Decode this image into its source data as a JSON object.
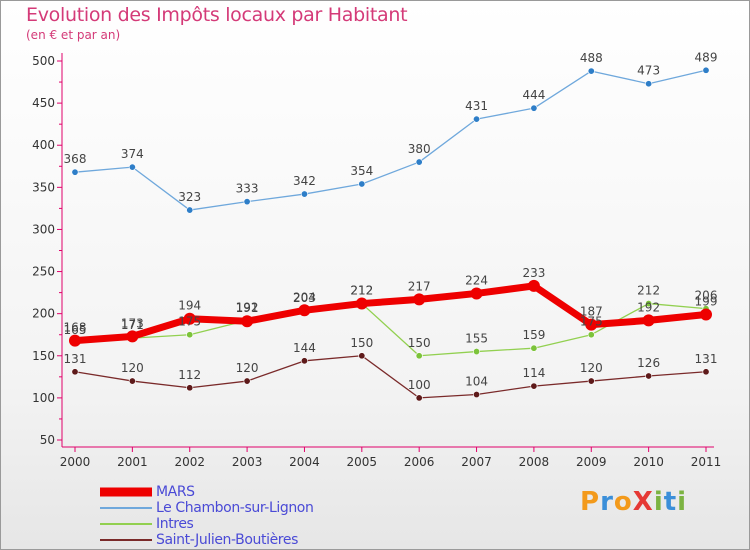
{
  "title": "Evolution des Impôts locaux par Habitant",
  "subtitle": "(en € et par an)",
  "logo": {
    "text": "ProXiti",
    "letters": [
      {
        "ch": "P",
        "color": "#f39a1b"
      },
      {
        "ch": "r",
        "color": "#3b8fd9"
      },
      {
        "ch": "o",
        "color": "#f39a1b"
      },
      {
        "ch": "X",
        "color": "#e53935"
      },
      {
        "ch": "i",
        "color": "#7cb342"
      },
      {
        "ch": "t",
        "color": "#3b8fd9"
      },
      {
        "ch": "i",
        "color": "#7cb342"
      }
    ]
  },
  "chart_data": {
    "type": "line",
    "title": "Evolution des Impôts locaux par Habitant",
    "subtitle": "(en € et par an)",
    "xlabel": "",
    "ylabel": "",
    "x": [
      "2000",
      "2001",
      "2002",
      "2003",
      "2004",
      "2005",
      "2006",
      "2007",
      "2008",
      "2009",
      "2010",
      "2011"
    ],
    "ylim": [
      50,
      500
    ],
    "yticks": [
      "50",
      "100",
      "150",
      "200",
      "250",
      "300",
      "350",
      "400",
      "450",
      "500"
    ],
    "grid": false,
    "legend_position": "bottom-left",
    "series": [
      {
        "name": "MARS",
        "color": "#ee0000",
        "emphasis": "thick",
        "values": [
          168,
          173,
          194,
          191,
          204,
          212,
          217,
          224,
          233,
          187,
          192,
          199
        ],
        "labels": [
          "168",
          "173",
          "194",
          "191",
          "204",
          "212",
          "217",
          "224",
          "233",
          "187",
          "192",
          "199"
        ]
      },
      {
        "name": "Le Chambon-sur-Lignon",
        "color": "#6fa8dc",
        "marker_color": "#2e7ec8",
        "values": [
          368,
          374,
          323,
          333,
          342,
          354,
          380,
          431,
          444,
          488,
          473,
          489
        ],
        "labels": [
          "368",
          "374",
          "323",
          "333",
          "342",
          "354",
          "380",
          "431",
          "444",
          "488",
          "473",
          "489"
        ]
      },
      {
        "name": "Intres",
        "color": "#92d050",
        "marker_color": "#7cc33a",
        "values": [
          165,
          171,
          175,
          192,
          203,
          212,
          150,
          155,
          159,
          175,
          212,
          206
        ],
        "labels": [
          "165",
          "171",
          "175",
          "192",
          "203",
          "212",
          "150",
          "155",
          "159",
          "175",
          "212",
          "206"
        ]
      },
      {
        "name": "Saint-Julien-Boutières",
        "color": "#7a2a2a",
        "marker_color": "#5e1a1a",
        "values": [
          131,
          120,
          112,
          120,
          144,
          150,
          100,
          104,
          114,
          120,
          126,
          131
        ],
        "labels": [
          "131",
          "120",
          "112",
          "120",
          "144",
          "150",
          "100",
          "104",
          "114",
          "120",
          "126",
          "131"
        ]
      }
    ]
  }
}
